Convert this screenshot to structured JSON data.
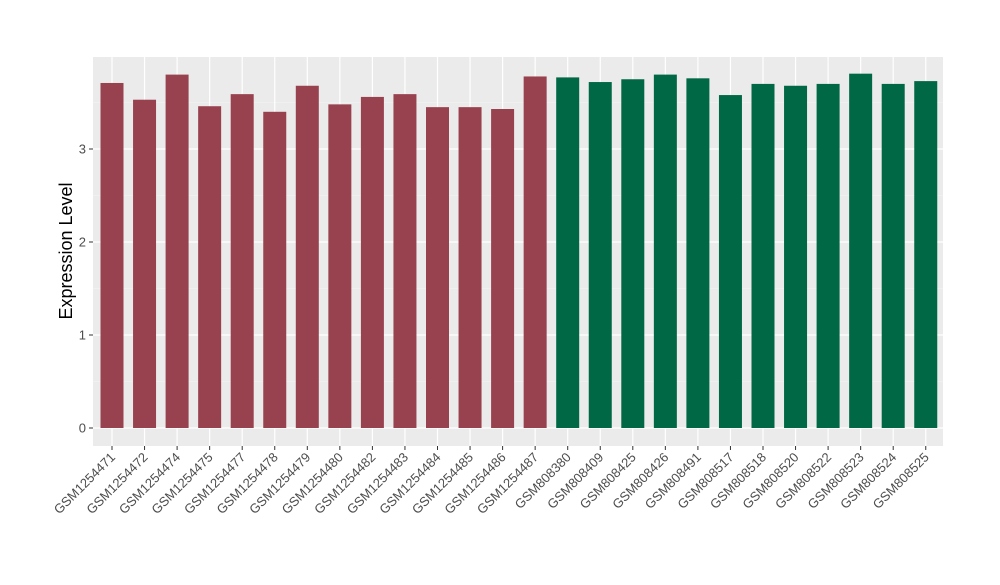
{
  "chart_data": {
    "type": "bar",
    "title": "",
    "xlabel": "",
    "ylabel": "Expression Level",
    "ylim": [
      -0.18,
      4.0
    ],
    "yticks": [
      "0",
      "1",
      "2",
      "3"
    ],
    "grid": true,
    "categories": [
      "GSM1254471",
      "GSM1254472",
      "GSM1254474",
      "GSM1254475",
      "GSM1254477",
      "GSM1254478",
      "GSM1254479",
      "GSM1254480",
      "GSM1254482",
      "GSM1254483",
      "GSM1254484",
      "GSM1254485",
      "GSM1254486",
      "GSM1254487",
      "GSM808380",
      "GSM808409",
      "GSM808425",
      "GSM808426",
      "GSM808491",
      "GSM808517",
      "GSM808518",
      "GSM808520",
      "GSM808522",
      "GSM808523",
      "GSM808524",
      "GSM808525"
    ],
    "values": [
      3.71,
      3.53,
      3.8,
      3.46,
      3.59,
      3.4,
      3.68,
      3.48,
      3.56,
      3.59,
      3.45,
      3.45,
      3.43,
      3.78,
      3.77,
      3.72,
      3.75,
      3.8,
      3.76,
      3.58,
      3.7,
      3.68,
      3.7,
      3.81,
      3.7,
      3.73
    ],
    "groups": [
      0,
      0,
      0,
      0,
      0,
      0,
      0,
      0,
      0,
      0,
      0,
      0,
      0,
      0,
      1,
      1,
      1,
      1,
      1,
      1,
      1,
      1,
      1,
      1,
      1,
      1
    ],
    "group_colors": [
      "#99424F",
      "#006845"
    ]
  }
}
